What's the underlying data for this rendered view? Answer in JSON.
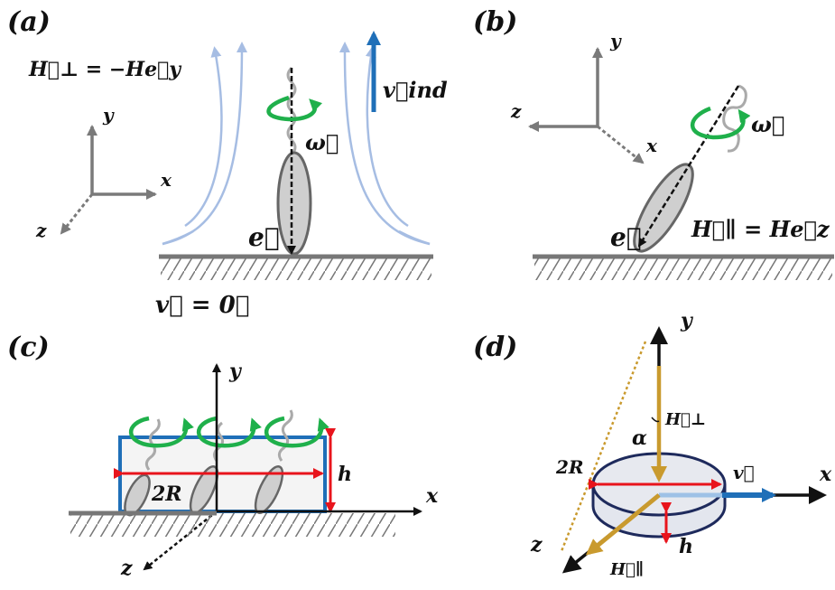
{
  "panels": {
    "a": {
      "label": "(a)",
      "field_eq": "H⃗⊥ = −He⃗y",
      "axis_x": "x",
      "axis_y": "y",
      "axis_z": "z",
      "omega": "ω⃗",
      "v_ind": "v⃗ind",
      "e_vec": "e⃗",
      "v_zero": "v⃗ = 0⃗"
    },
    "b": {
      "label": "(b)",
      "axis_x": "x",
      "axis_y": "y",
      "axis_z": "z",
      "omega": "ω⃗",
      "e_vec": "e⃗",
      "field_eq": "H⃗∥ = He⃗z"
    },
    "c": {
      "label": "(c)",
      "axis_x": "x",
      "axis_y": "y",
      "axis_z": "z",
      "two_r": "2R",
      "h": "h"
    },
    "d": {
      "label": "(d)",
      "axis_x": "x",
      "axis_y": "y",
      "axis_z": "z",
      "two_r": "2R",
      "h": "h",
      "alpha": "α",
      "h_perp": "H⃗⊥",
      "h_par": "H⃗∥",
      "v": "v⃗"
    }
  },
  "colors": {
    "flow": "#a6bde3",
    "omega": "#1fb04b",
    "v_ind": "#1f6fb8",
    "red": "#e8141c",
    "blue_box": "#1f6fb8",
    "gold": "#c99a2e",
    "gray": "#7a7a7a"
  }
}
